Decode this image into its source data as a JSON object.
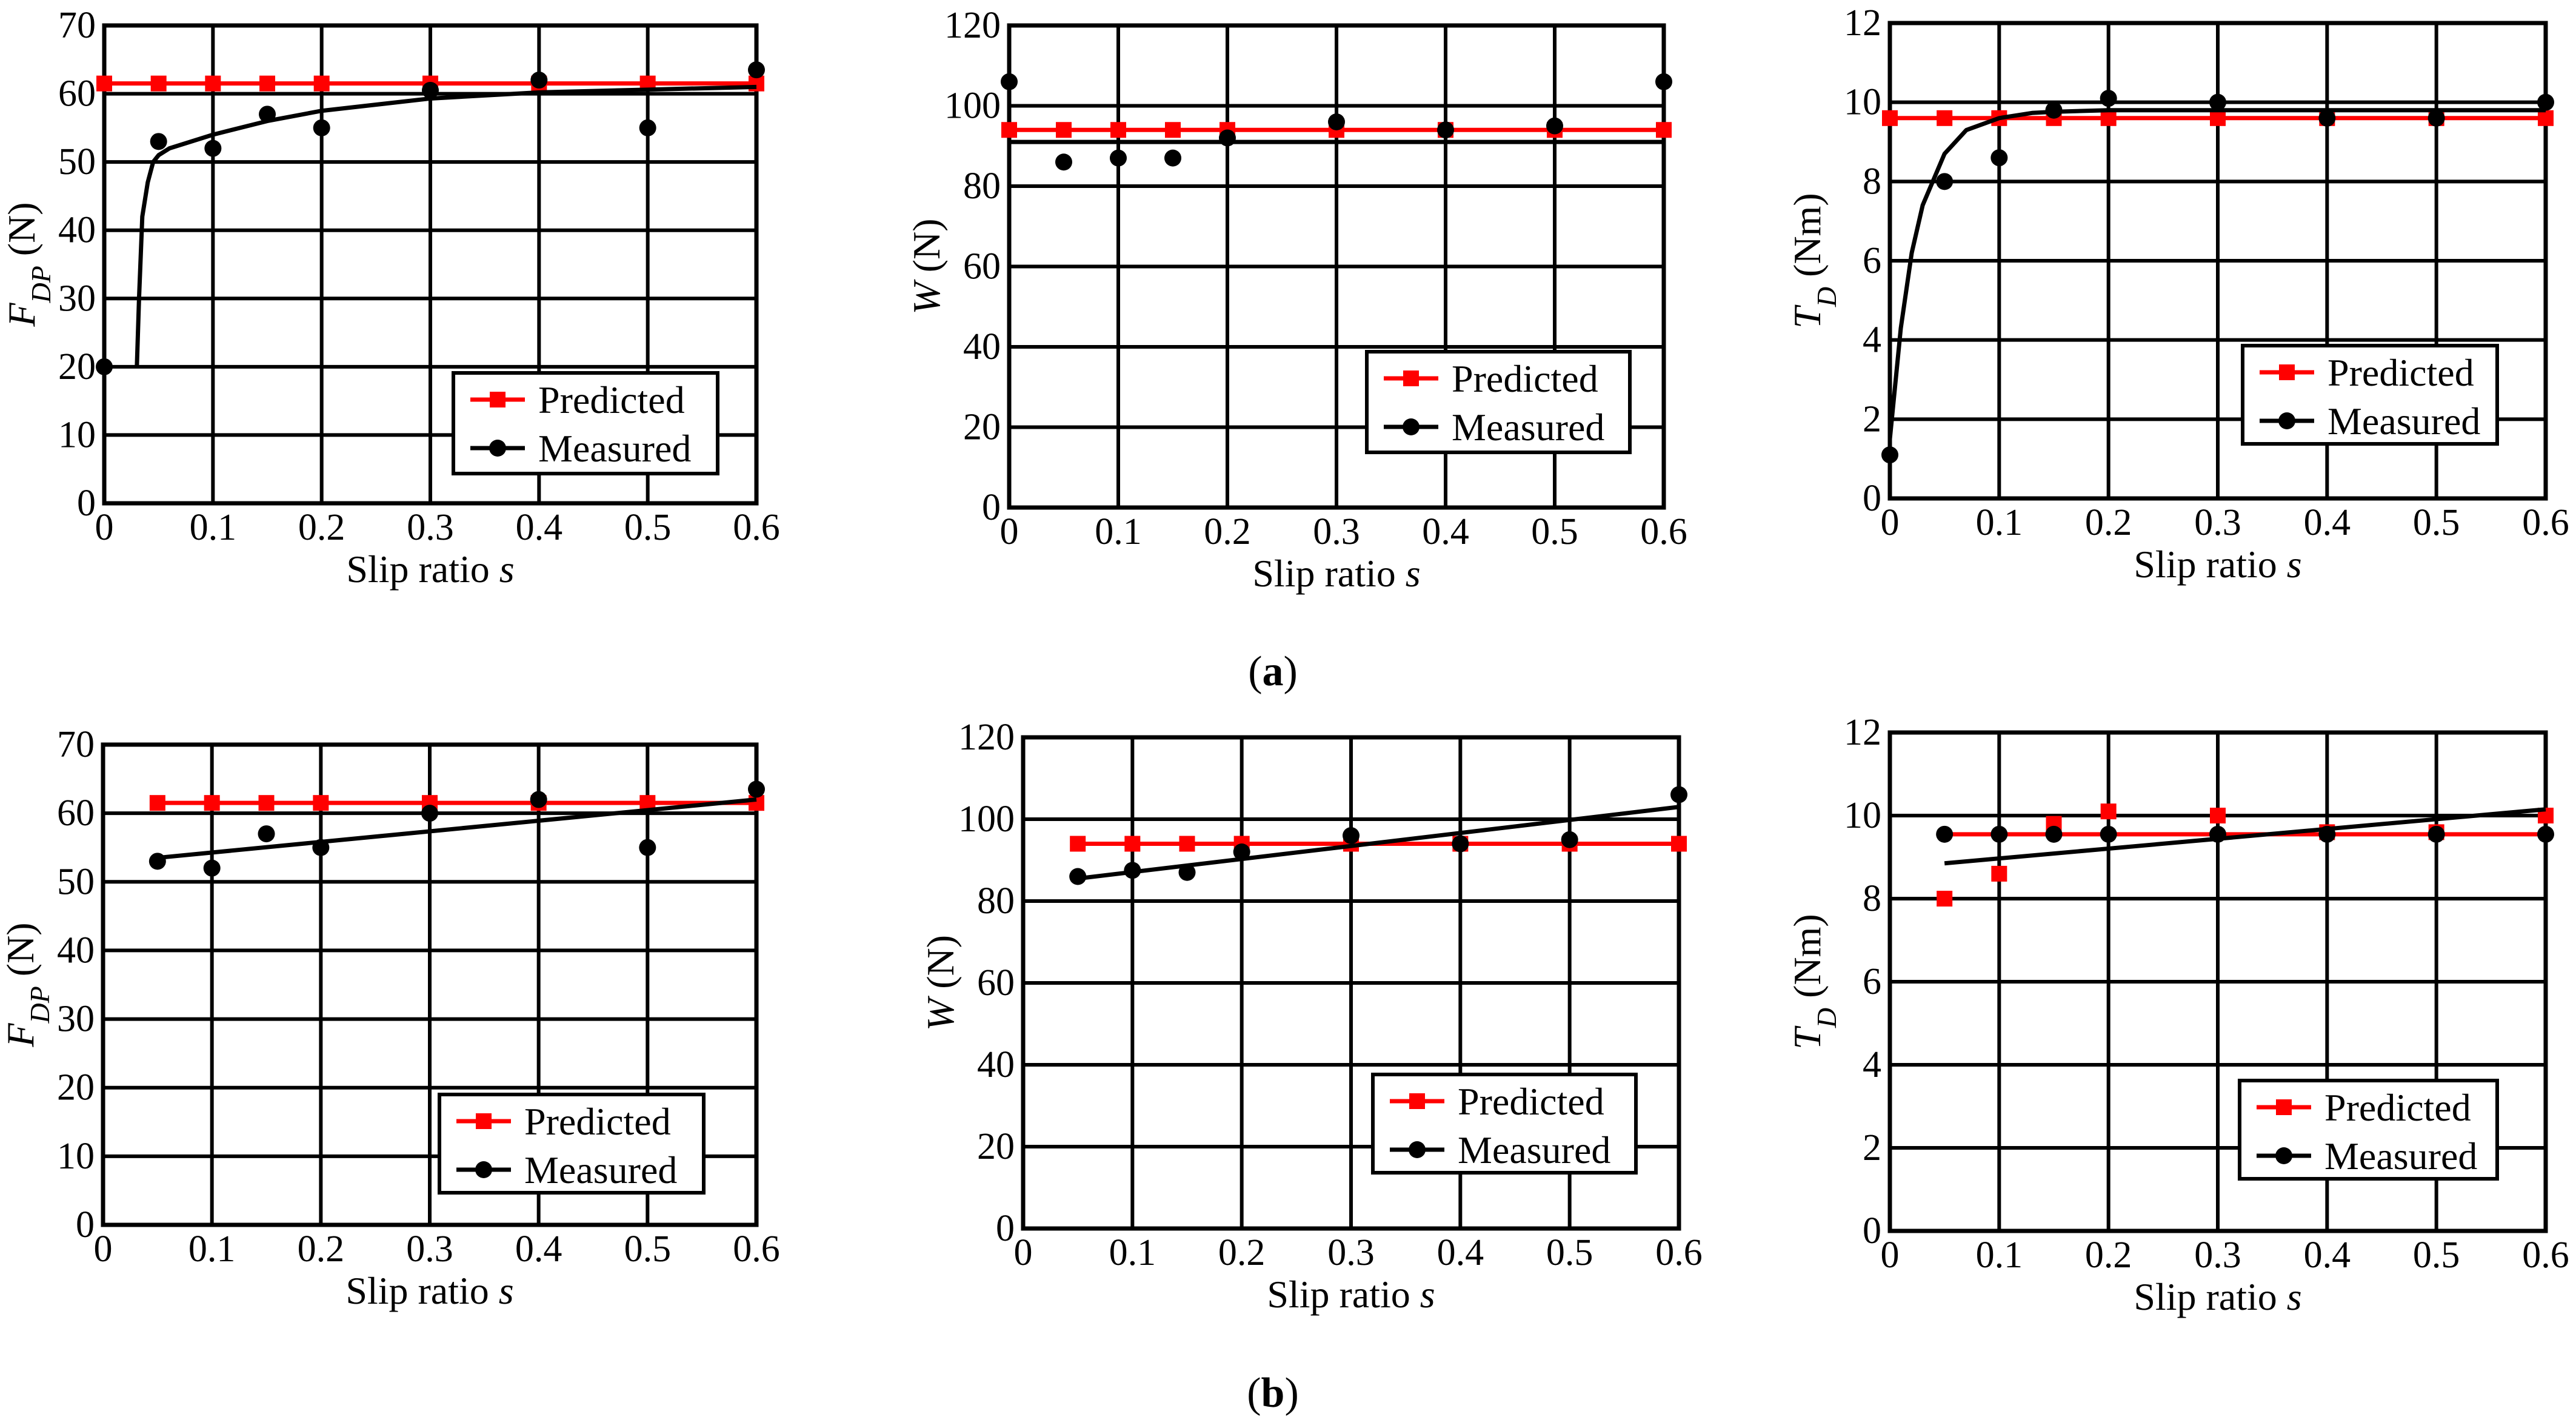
{
  "figure": {
    "panel_labels": [
      {
        "open": "(",
        "letter": "a",
        "close": ")"
      },
      {
        "open": "(",
        "letter": "b",
        "close": ")"
      }
    ]
  },
  "colors": {
    "predicted": "#ff0000",
    "measured": "#000000",
    "grid": "#000000"
  },
  "chart_data": [
    {
      "id": "a1",
      "group": "a",
      "type": "line",
      "xlabel": "Slip ratio",
      "xlabel_var": "s",
      "ylabel": {
        "var": "F",
        "sub": "DP",
        "unit": " (N)"
      },
      "xlim": [
        0,
        0.6
      ],
      "ylim": [
        0,
        70
      ],
      "xticks": [
        0,
        0.1,
        0.2,
        0.3,
        0.4,
        0.5,
        0.6
      ],
      "xticklabels": [
        "0",
        "0.1",
        "0.2",
        "0.3",
        "0.4",
        "0.5",
        "0.6"
      ],
      "yticks": [
        0,
        10,
        20,
        30,
        40,
        50,
        60,
        70
      ],
      "yticklabels": [
        "0",
        "10",
        "20",
        "30",
        "40",
        "50",
        "60",
        "70"
      ],
      "legend": {
        "position": "lower-right",
        "entries": [
          "Predicted",
          "Measured"
        ]
      },
      "series": [
        {
          "name": "Predicted",
          "marker": "square",
          "x": [
            0,
            0.05,
            0.1,
            0.15,
            0.2,
            0.3,
            0.4,
            0.5,
            0.6
          ],
          "y": [
            61.5,
            61.5,
            61.5,
            61.5,
            61.5,
            61.5,
            61.5,
            61.5,
            61.5
          ]
        },
        {
          "name": "Measured",
          "marker": "circle",
          "x": [
            0,
            0.05,
            0.1,
            0.15,
            0.2,
            0.3,
            0.4,
            0.5,
            0.6
          ],
          "y": [
            20,
            53,
            52,
            57,
            55,
            60.5,
            62,
            55,
            63.5
          ]
        }
      ],
      "fit": {
        "x": [
          0.03,
          0.032,
          0.035,
          0.04,
          0.045,
          0.05,
          0.06,
          0.08,
          0.1,
          0.15,
          0.2,
          0.3,
          0.4,
          0.5,
          0.6
        ],
        "y": [
          20,
          30,
          42,
          47,
          50,
          51,
          52,
          53,
          54,
          56,
          57.5,
          59.3,
          60.2,
          60.6,
          61
        ]
      }
    },
    {
      "id": "a2",
      "group": "a",
      "type": "line",
      "xlabel": "Slip ratio",
      "xlabel_var": "s",
      "ylabel": {
        "var": "W",
        "sub": "",
        "unit": " (N)"
      },
      "xlim": [
        0,
        0.6
      ],
      "ylim": [
        0,
        120
      ],
      "xticks": [
        0,
        0.1,
        0.2,
        0.3,
        0.4,
        0.5,
        0.6
      ],
      "xticklabels": [
        "0",
        "0.1",
        "0.2",
        "0.3",
        "0.4",
        "0.5",
        "0.6"
      ],
      "yticks": [
        0,
        20,
        40,
        60,
        80,
        100,
        120
      ],
      "yticklabels": [
        "0",
        "20",
        "40",
        "60",
        "80",
        "100",
        "120"
      ],
      "legend": {
        "position": "lower-right",
        "entries": [
          "Predicted",
          "Measured"
        ]
      },
      "series": [
        {
          "name": "Predicted",
          "marker": "square",
          "x": [
            0,
            0.05,
            0.1,
            0.15,
            0.2,
            0.3,
            0.4,
            0.5,
            0.6
          ],
          "y": [
            94,
            94,
            94,
            94,
            94,
            94,
            94,
            94,
            94
          ]
        },
        {
          "name": "Measured",
          "marker": "circle",
          "x": [
            0,
            0.05,
            0.1,
            0.15,
            0.2,
            0.3,
            0.4,
            0.5,
            0.6
          ],
          "y": [
            106,
            86,
            87,
            87,
            92,
            96,
            94,
            95,
            106
          ]
        }
      ],
      "fit": {
        "x": [
          0,
          0.6
        ],
        "y": [
          91,
          91
        ]
      }
    },
    {
      "id": "a3",
      "group": "a",
      "type": "line",
      "xlabel": "Slip ratio",
      "xlabel_var": "s",
      "ylabel": {
        "var": "T",
        "sub": "D",
        "unit": " (Nm)"
      },
      "xlim": [
        0,
        0.6
      ],
      "ylim": [
        0,
        12
      ],
      "xticks": [
        0,
        0.1,
        0.2,
        0.3,
        0.4,
        0.5,
        0.6
      ],
      "xticklabels": [
        "0",
        "0.1",
        "0.2",
        "0.3",
        "0.4",
        "0.5",
        "0.6"
      ],
      "yticks": [
        0,
        2,
        4,
        6,
        8,
        10,
        12
      ],
      "yticklabels": [
        "0",
        "2",
        "4",
        "6",
        "8",
        "10",
        "12"
      ],
      "legend": {
        "position": "lower-right",
        "entries": [
          "Predicted",
          "Measured"
        ]
      },
      "series": [
        {
          "name": "Predicted",
          "marker": "square",
          "x": [
            0,
            0.05,
            0.1,
            0.15,
            0.2,
            0.3,
            0.4,
            0.5,
            0.6
          ],
          "y": [
            9.6,
            9.6,
            9.6,
            9.6,
            9.6,
            9.6,
            9.6,
            9.6,
            9.6
          ]
        },
        {
          "name": "Measured",
          "marker": "circle",
          "x": [
            0,
            0.05,
            0.1,
            0.15,
            0.2,
            0.3,
            0.4,
            0.5,
            0.6
          ],
          "y": [
            1.1,
            8,
            8.6,
            9.8,
            10.1,
            10,
            9.6,
            9.6,
            10
          ]
        },
        {
          "name": "Measured-fit",
          "marker": "none",
          "x": [
            0,
            0.01,
            0.02,
            0.03,
            0.05,
            0.07,
            0.1,
            0.13,
            0.15,
            0.2,
            0.3,
            0.4,
            0.5,
            0.6
          ],
          "y": [
            1.5,
            4.3,
            6.2,
            7.4,
            8.7,
            9.3,
            9.6,
            9.73,
            9.76,
            9.8,
            9.8,
            9.8,
            9.8,
            9.8
          ]
        }
      ]
    },
    {
      "id": "b1",
      "group": "b",
      "type": "line",
      "xlabel": "Slip ratio",
      "xlabel_var": "s",
      "ylabel": {
        "var": "F",
        "sub": "DP",
        "unit": " (N)"
      },
      "xlim": [
        0,
        0.6
      ],
      "ylim": [
        0,
        70
      ],
      "xticks": [
        0,
        0.1,
        0.2,
        0.3,
        0.4,
        0.5,
        0.6
      ],
      "xticklabels": [
        "0",
        "0.1",
        "0.2",
        "0.3",
        "0.4",
        "0.5",
        "0.6"
      ],
      "yticks": [
        0,
        10,
        20,
        30,
        40,
        50,
        60,
        70
      ],
      "yticklabels": [
        "0",
        "10",
        "20",
        "30",
        "40",
        "50",
        "60",
        "70"
      ],
      "legend": {
        "position": "lower-right",
        "entries": [
          "Predicted",
          "Measured"
        ]
      },
      "series": [
        {
          "name": "Predicted",
          "marker": "square",
          "x": [
            0.05,
            0.1,
            0.15,
            0.2,
            0.3,
            0.4,
            0.5,
            0.6
          ],
          "y": [
            61.5,
            61.5,
            61.5,
            61.5,
            61.5,
            61.5,
            61.5,
            61.5
          ]
        },
        {
          "name": "Measured",
          "marker": "circle",
          "x": [
            0.05,
            0.1,
            0.15,
            0.2,
            0.3,
            0.4,
            0.5,
            0.6
          ],
          "y": [
            53,
            52,
            57,
            55,
            60,
            62,
            55,
            63.5
          ]
        }
      ],
      "fit": {
        "x": [
          0.05,
          0.6
        ],
        "y": [
          53.5,
          62
        ]
      }
    },
    {
      "id": "b2",
      "group": "b",
      "type": "line",
      "xlabel": "Slip ratio",
      "xlabel_var": "s",
      "ylabel": {
        "var": "W",
        "sub": "",
        "unit": " (N)"
      },
      "xlim": [
        0,
        0.6
      ],
      "ylim": [
        0,
        120
      ],
      "xticks": [
        0,
        0.1,
        0.2,
        0.3,
        0.4,
        0.5,
        0.6
      ],
      "xticklabels": [
        "0",
        "0.1",
        "0.2",
        "0.3",
        "0.4",
        "0.5",
        "0.6"
      ],
      "yticks": [
        0,
        20,
        40,
        60,
        80,
        100,
        120
      ],
      "yticklabels": [
        "0",
        "20",
        "40",
        "60",
        "80",
        "100",
        "120"
      ],
      "legend": {
        "position": "lower-right",
        "entries": [
          "Predicted",
          "Measured"
        ]
      },
      "series": [
        {
          "name": "Predicted",
          "marker": "square",
          "x": [
            0.05,
            0.1,
            0.15,
            0.2,
            0.3,
            0.4,
            0.5,
            0.6
          ],
          "y": [
            94,
            94,
            94,
            94,
            94,
            94,
            94,
            94
          ]
        },
        {
          "name": "Measured",
          "marker": "circle",
          "x": [
            0.05,
            0.1,
            0.15,
            0.2,
            0.3,
            0.4,
            0.5,
            0.6
          ],
          "y": [
            86,
            87.5,
            87,
            92,
            96,
            94,
            95,
            106
          ]
        }
      ],
      "fit": {
        "x": [
          0.05,
          0.6
        ],
        "y": [
          85.5,
          103
        ]
      }
    },
    {
      "id": "b3",
      "group": "b",
      "type": "line",
      "xlabel": "Slip ratio",
      "xlabel_var": "s",
      "ylabel": {
        "var": "T",
        "sub": "D",
        "unit": " (Nm)"
      },
      "xlim": [
        0,
        0.6
      ],
      "ylim": [
        0,
        12
      ],
      "xticks": [
        0,
        0.1,
        0.2,
        0.3,
        0.4,
        0.5,
        0.6
      ],
      "xticklabels": [
        "0",
        "0.1",
        "0.2",
        "0.3",
        "0.4",
        "0.5",
        "0.6"
      ],
      "yticks": [
        0,
        2,
        4,
        6,
        8,
        10,
        12
      ],
      "yticklabels": [
        "0",
        "2",
        "4",
        "6",
        "8",
        "10",
        "12"
      ],
      "legend": {
        "position": "lower-right",
        "entries": [
          "Predicted",
          "Measured"
        ]
      },
      "series": [
        {
          "name": "Predicted",
          "marker": "square",
          "x": [
            0.05,
            0.1,
            0.15,
            0.2,
            0.3,
            0.4,
            0.5,
            0.6
          ],
          "y": [
            8,
            8.6,
            9.8,
            10.1,
            10,
            9.6,
            9.6,
            10
          ],
          "line": {
            "x": [
              0.05,
              0.6
            ],
            "y": [
              9.55,
              9.55
            ]
          }
        },
        {
          "name": "Measured",
          "marker": "circle",
          "x": [
            0.05,
            0.1,
            0.15,
            0.2,
            0.3,
            0.4,
            0.5,
            0.6
          ],
          "y": [
            9.55,
            9.55,
            9.55,
            9.55,
            9.55,
            9.55,
            9.55,
            9.55
          ]
        }
      ],
      "fit": {
        "x": [
          0.05,
          0.6
        ],
        "y": [
          8.85,
          10.15
        ]
      }
    }
  ]
}
